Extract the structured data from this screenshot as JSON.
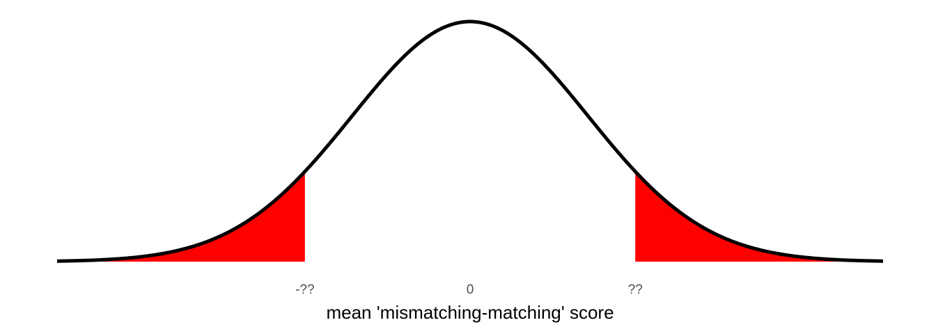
{
  "chart_data": {
    "type": "area",
    "title": "",
    "subtitle": "",
    "xlabel": "mean 'mismatching-matching' score",
    "ylabel": "",
    "distribution": {
      "name": "normal",
      "mean": 0,
      "sd": 1
    },
    "xlim": [
      -3.5,
      3.5
    ],
    "ylim": [
      0,
      0.4
    ],
    "grid": false,
    "legend": "none",
    "ticks": [
      {
        "value": -1.4,
        "label": "-??"
      },
      {
        "value": 0,
        "label": "0"
      },
      {
        "value": 1.4,
        "label": "??"
      }
    ],
    "shaded_regions": [
      {
        "from": -3.5,
        "to": -1.4,
        "color": "#ff0000"
      },
      {
        "from": 1.4,
        "to": 3.5,
        "color": "#ff0000"
      }
    ],
    "colors": {
      "curve": "#000000",
      "shade": "#ff0000",
      "tick_text": "#4d4d4d",
      "axis_title": "#000000"
    }
  }
}
